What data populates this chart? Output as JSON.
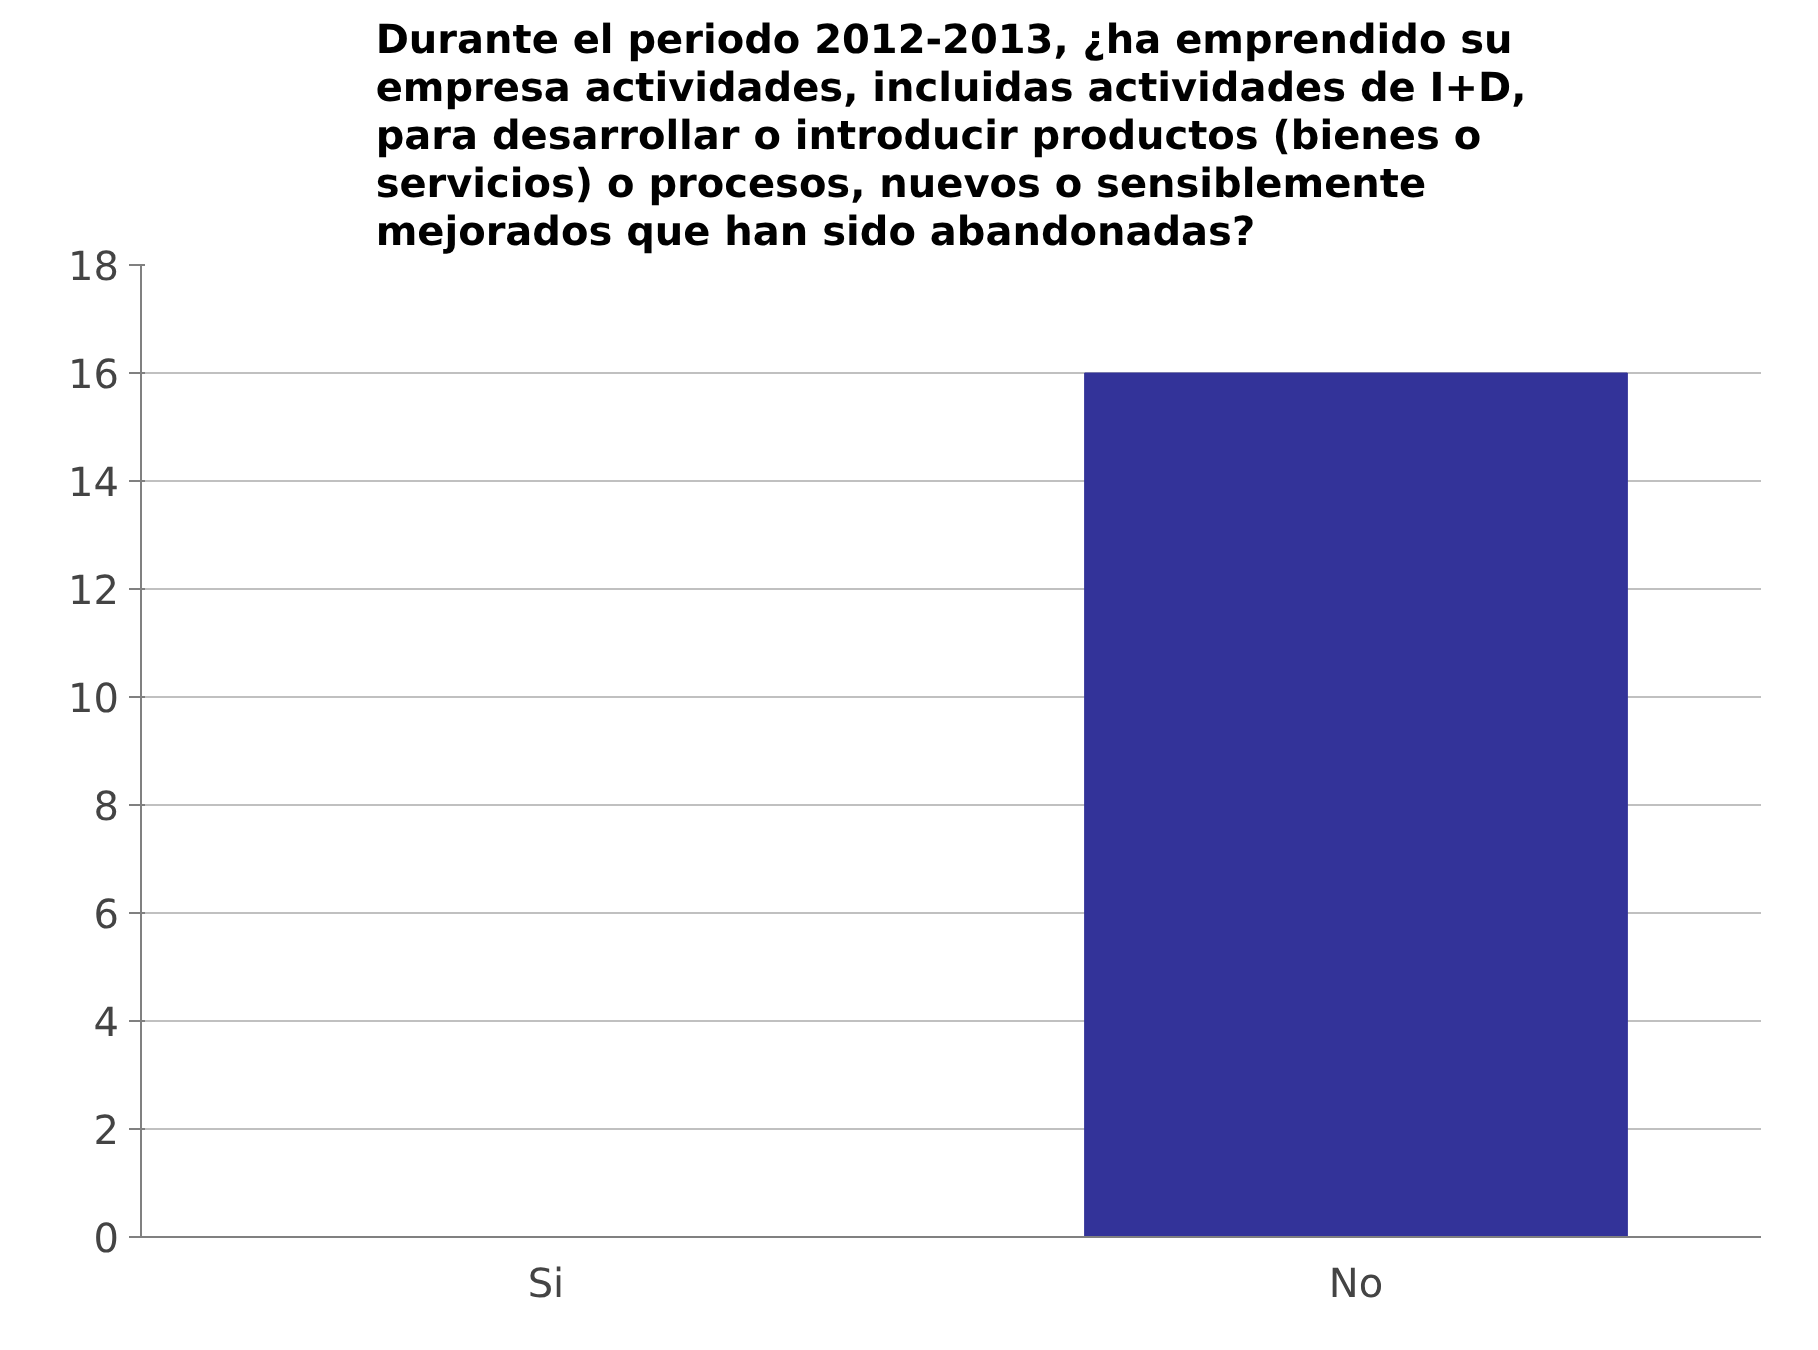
{
  "chart_data": {
    "type": "bar",
    "title": "Durante el periodo 2012-2013, ¿ha emprendido su empresa actividades, incluidas actividades de I+D, para desarrollar o introducir productos (bienes o servicios) o procesos, nuevos o sensiblemente mejorados que han sido abandonadas?",
    "categories": [
      "Si",
      "No"
    ],
    "values": [
      0,
      16
    ],
    "color": "#333399",
    "ylim": [
      0,
      18
    ],
    "yticks": [
      0,
      2,
      4,
      6,
      8,
      10,
      12,
      14,
      16,
      18
    ],
    "grid": "y"
  }
}
